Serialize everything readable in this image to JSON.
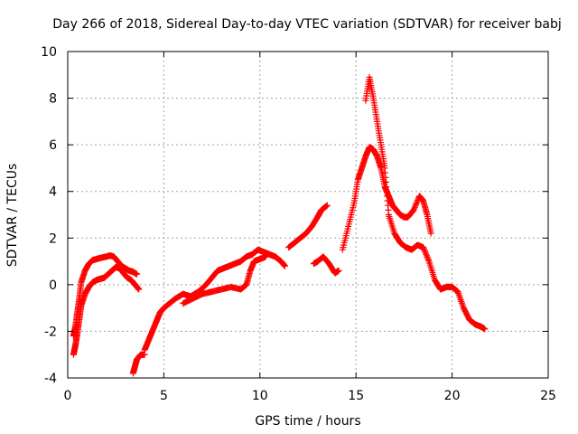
{
  "chart_data": {
    "type": "scatter",
    "title": "Day 266 of 2018, Sidereal Day-to-day VTEC variation (SDTVAR) for receiver babj",
    "xlabel": "GPS time / hours",
    "ylabel": "SDTVAR / TECUs",
    "xlim": [
      0,
      25
    ],
    "ylim": [
      -4,
      10
    ],
    "xticks": [
      0,
      5,
      10,
      15,
      20,
      25
    ],
    "yticks": [
      -4,
      -2,
      0,
      2,
      4,
      6,
      8,
      10
    ],
    "grid": true,
    "marker": "+",
    "series": [
      {
        "name": "SDTVAR",
        "color": "#ff0000",
        "traces": [
          {
            "x": [
              0.3,
              0.4,
              0.5,
              0.6,
              0.7,
              0.9,
              1.1,
              1.3,
              1.5,
              1.7,
              2.0,
              2.2,
              2.4,
              2.6,
              2.8,
              3.0,
              3.2,
              3.4,
              3.6
            ],
            "y": [
              -2.2,
              -1.8,
              -1.2,
              -0.6,
              0.1,
              0.6,
              0.9,
              1.05,
              1.1,
              1.15,
              1.2,
              1.25,
              1.2,
              1.0,
              0.8,
              0.7,
              0.6,
              0.55,
              0.45
            ]
          },
          {
            "x": [
              0.3,
              0.4,
              0.5,
              0.6,
              0.7,
              0.9,
              1.1,
              1.3,
              1.5,
              1.7,
              1.9,
              2.1,
              2.3,
              2.5,
              2.7,
              2.9,
              3.1,
              3.3,
              3.5,
              3.7
            ],
            "y": [
              -3.0,
              -2.6,
              -2.1,
              -1.5,
              -0.9,
              -0.4,
              -0.1,
              0.1,
              0.2,
              0.25,
              0.3,
              0.45,
              0.6,
              0.75,
              0.7,
              0.5,
              0.3,
              0.2,
              0.0,
              -0.2
            ]
          },
          {
            "x": [
              3.4,
              3.5,
              3.6,
              3.8,
              4.0
            ],
            "y": [
              -3.8,
              -3.5,
              -3.2,
              -3.0,
              -3.0
            ]
          },
          {
            "x": [
              4.0,
              4.2,
              4.4,
              4.6,
              4.8,
              5.0,
              5.3,
              5.6,
              6.0,
              6.4,
              6.8,
              7.2,
              7.5,
              7.8,
              8.1,
              8.4,
              8.7,
              9.0,
              9.3,
              9.6,
              9.9,
              10.2,
              10.5,
              10.8,
              11.1,
              11.3
            ],
            "y": [
              -2.8,
              -2.4,
              -2.0,
              -1.6,
              -1.2,
              -1.0,
              -0.8,
              -0.6,
              -0.4,
              -0.5,
              -0.3,
              0.0,
              0.3,
              0.6,
              0.7,
              0.8,
              0.9,
              1.0,
              1.2,
              1.3,
              1.5,
              1.4,
              1.3,
              1.2,
              1.0,
              0.8
            ]
          },
          {
            "x": [
              6.0,
              6.5,
              7.0,
              7.5,
              8.0,
              8.5,
              9.0,
              9.3,
              9.5,
              9.7,
              10.0,
              10.3
            ],
            "y": [
              -0.8,
              -0.6,
              -0.4,
              -0.3,
              -0.2,
              -0.1,
              -0.2,
              0.0,
              0.6,
              1.0,
              1.1,
              1.2
            ]
          },
          {
            "x": [
              11.5,
              11.8,
              12.1,
              12.4,
              12.7,
              13.0,
              13.2,
              13.5
            ],
            "y": [
              1.6,
              1.8,
              2.0,
              2.2,
              2.5,
              2.9,
              3.2,
              3.4
            ]
          },
          {
            "x": [
              12.8,
              13.0,
              13.3,
              13.6,
              13.9,
              14.1
            ],
            "y": [
              0.9,
              1.0,
              1.2,
              0.9,
              0.5,
              0.6
            ]
          },
          {
            "x": [
              14.3,
              14.6,
              14.9,
              15.1,
              15.3,
              15.5,
              15.7,
              15.9,
              16.1,
              16.3,
              16.5,
              16.7,
              16.9,
              17.1,
              17.3,
              17.5,
              17.7,
              18.0,
              18.3,
              18.5,
              18.7,
              18.9
            ],
            "y": [
              1.5,
              2.5,
              3.5,
              4.5,
              5.0,
              5.5,
              5.9,
              5.8,
              5.5,
              5.0,
              4.2,
              3.8,
              3.4,
              3.2,
              3.0,
              2.9,
              2.9,
              3.2,
              3.8,
              3.6,
              3.0,
              2.2
            ]
          },
          {
            "x": [
              15.5,
              15.7,
              15.9,
              16.1,
              16.3,
              16.5,
              16.7,
              17.0,
              17.3,
              17.6,
              17.9,
              18.2,
              18.5,
              18.8,
              19.1,
              19.4,
              19.7,
              20.0,
              20.3,
              20.6,
              20.9,
              21.2,
              21.5,
              21.7
            ],
            "y": [
              7.9,
              8.9,
              8.0,
              7.0,
              6.0,
              5.0,
              3.0,
              2.2,
              1.8,
              1.6,
              1.5,
              1.7,
              1.6,
              1.0,
              0.2,
              -0.2,
              -0.1,
              -0.1,
              -0.3,
              -1.0,
              -1.5,
              -1.7,
              -1.8,
              -1.9
            ]
          }
        ]
      }
    ]
  }
}
